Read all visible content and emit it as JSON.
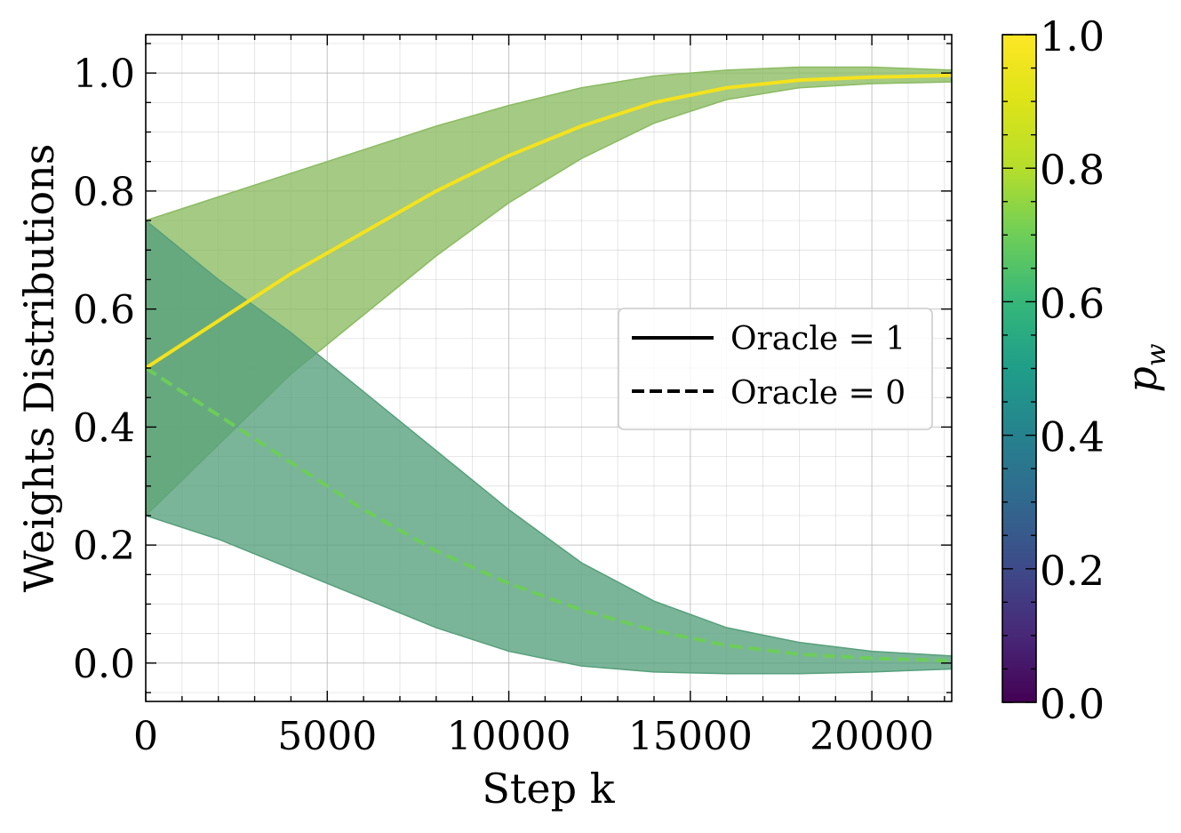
{
  "chart_data": {
    "type": "line",
    "xlabel": "Step k",
    "ylabel": "Weights Distributions",
    "xlim": [
      0,
      22200
    ],
    "ylim": [
      -0.065,
      1.065
    ],
    "x_ticks": [
      "0",
      "5000",
      "10000",
      "15000",
      "20000"
    ],
    "y_ticks": [
      "0.0",
      "0.2",
      "0.4",
      "0.6",
      "0.8",
      "1.0"
    ],
    "grid": "on (major and minor)",
    "legend": {
      "placement": "center-right",
      "entries": [
        "Oracle = 1",
        "Oracle = 0"
      ]
    },
    "colorbar": {
      "label": "p_w",
      "range": [
        0,
        1
      ],
      "ticks": [
        "0.0",
        "0.2",
        "0.4",
        "0.6",
        "0.8",
        "1.0"
      ],
      "colormap": "viridis"
    },
    "series": [
      {
        "name": "Oracle = 1",
        "style": "solid",
        "line_color": "#f4e21d",
        "band_color": "#8bbb62",
        "x": [
          0,
          2000,
          4000,
          6000,
          8000,
          10000,
          12000,
          14000,
          16000,
          18000,
          20000,
          22200
        ],
        "mean": [
          0.5,
          0.58,
          0.66,
          0.73,
          0.8,
          0.86,
          0.91,
          0.95,
          0.975,
          0.988,
          0.993,
          0.996
        ],
        "upper": [
          0.75,
          0.79,
          0.83,
          0.87,
          0.91,
          0.945,
          0.975,
          0.995,
          1.005,
          1.01,
          1.01,
          1.005
        ],
        "lower": [
          0.25,
          0.37,
          0.49,
          0.59,
          0.69,
          0.78,
          0.855,
          0.915,
          0.955,
          0.975,
          0.982,
          0.985
        ]
      },
      {
        "name": "Oracle = 0",
        "style": "dashed",
        "line_color": "#6ccd59",
        "band_color": "#56a07c",
        "x": [
          0,
          2000,
          4000,
          6000,
          8000,
          10000,
          12000,
          14000,
          16000,
          18000,
          20000,
          22200
        ],
        "mean": [
          0.5,
          0.42,
          0.34,
          0.26,
          0.19,
          0.135,
          0.09,
          0.055,
          0.03,
          0.015,
          0.008,
          0.004
        ],
        "upper": [
          0.75,
          0.65,
          0.56,
          0.46,
          0.36,
          0.26,
          0.17,
          0.105,
          0.06,
          0.035,
          0.02,
          0.012
        ],
        "lower": [
          0.25,
          0.21,
          0.16,
          0.11,
          0.06,
          0.02,
          -0.005,
          -0.015,
          -0.018,
          -0.018,
          -0.015,
          -0.01
        ]
      }
    ]
  }
}
